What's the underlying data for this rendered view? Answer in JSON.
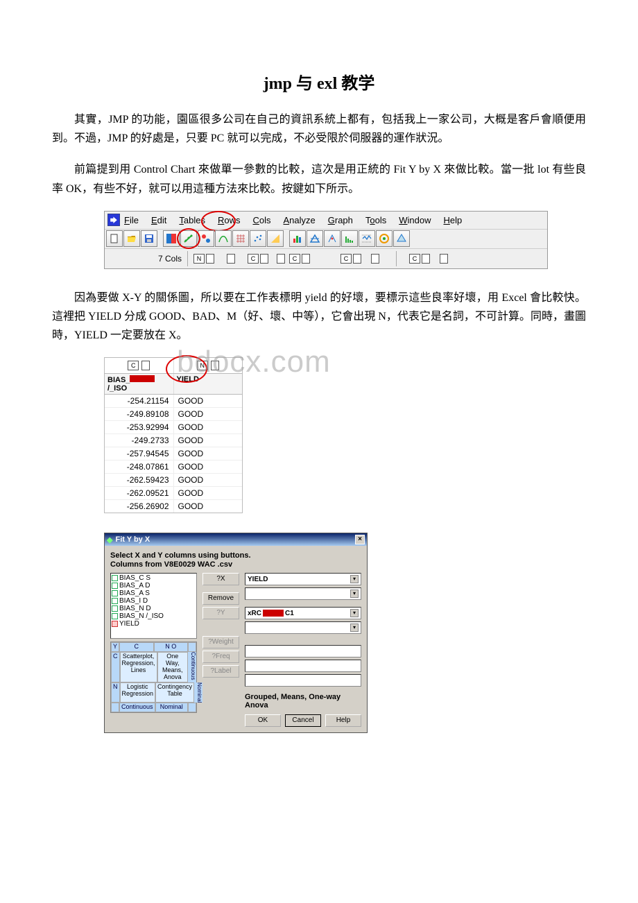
{
  "title": "jmp 与 exl 教学",
  "para1": "其實，JMP 的功能，園區很多公司在自己的資訊系統上都有，包括我上一家公司，大概是客戶會順便用到。不過，JMP 的好處是，只要 PC 就可以完成，不必受限於伺服器的運作狀況。",
  "para2": "前篇提到用 Control Chart 來做單一參數的比較，這次是用正統的 Fit Y by X 來做比較。當一批 lot 有些良率 OK，有些不好，就可以用這種方法來比較。按鍵如下所示。",
  "para3": "因為要做 X-Y 的關係圖，所以要在工作表標明 yield 的好壞，要標示這些良率好壞，用 Excel 會比較快。這裡把 YIELD 分成 GOOD、BAD、M（好、壞、中等），它會出現 N，代表它是名詞，不可計算。同時，畫圖時，YIELD 一定要放在 X。",
  "menu": {
    "items": [
      "File",
      "Edit",
      "Tables",
      "Rows",
      "Cols",
      "Analyze",
      "Graph",
      "Tools",
      "Window",
      "Help"
    ]
  },
  "colsrow_label": "7 Cols",
  "datatable": {
    "headers": {
      "col1": "BIAS_",
      "col1_suffix": "/_ISO",
      "col2": "YIELD"
    },
    "type_tags": {
      "col1": "C",
      "col2": "N"
    },
    "rows": [
      [
        "-254.21154",
        "GOOD"
      ],
      [
        "-249.89108",
        "GOOD"
      ],
      [
        "-253.92994",
        "GOOD"
      ],
      [
        "-249.2733",
        "GOOD"
      ],
      [
        "-257.94545",
        "GOOD"
      ],
      [
        "-248.07861",
        "GOOD"
      ],
      [
        "-262.59423",
        "GOOD"
      ],
      [
        "-262.09521",
        "GOOD"
      ],
      [
        "-256.26902",
        "GOOD"
      ]
    ]
  },
  "watermark": "bdocx.com",
  "dialog": {
    "title": "Fit Y by X",
    "line1": "Select X and Y columns using buttons.",
    "line2": "Columns from V8E0029 WAC .csv",
    "list": [
      "BIAS_C    S",
      "BIAS_A    D",
      "BIAS_A    S",
      "BIAS_I    D",
      "BIAS_N    D",
      "BIAS_N    /_ISO",
      "YIELD"
    ],
    "buttons": {
      "qx": "?X",
      "remove": "Remove",
      "qy": "?Y",
      "weight": "?Weight",
      "freq": "?Freq",
      "label": "?Label"
    },
    "fields": {
      "y": "YIELD",
      "xrc": "xRC",
      "c1": "C1"
    },
    "matrix": {
      "side_y": "Y",
      "top": [
        "",
        "C",
        "N O"
      ],
      "r1": [
        "C",
        "Scatterplot, Regression, Lines",
        "One Way, Means, Anova"
      ],
      "r2": [
        "N",
        "Logistic Regression",
        "Contingency Table"
      ],
      "bottom": [
        "",
        "Continuous",
        "Nominal"
      ],
      "side_label": "Continuous  Nominal"
    },
    "group_label": "Grouped, Means, One-way Anova",
    "ok": "OK",
    "cancel": "Cancel",
    "help": "Help",
    "colors": {
      "titlebar_start": "#0a246a",
      "titlebar_end": "#a6caf0",
      "panel": "#d4d0c8"
    }
  }
}
